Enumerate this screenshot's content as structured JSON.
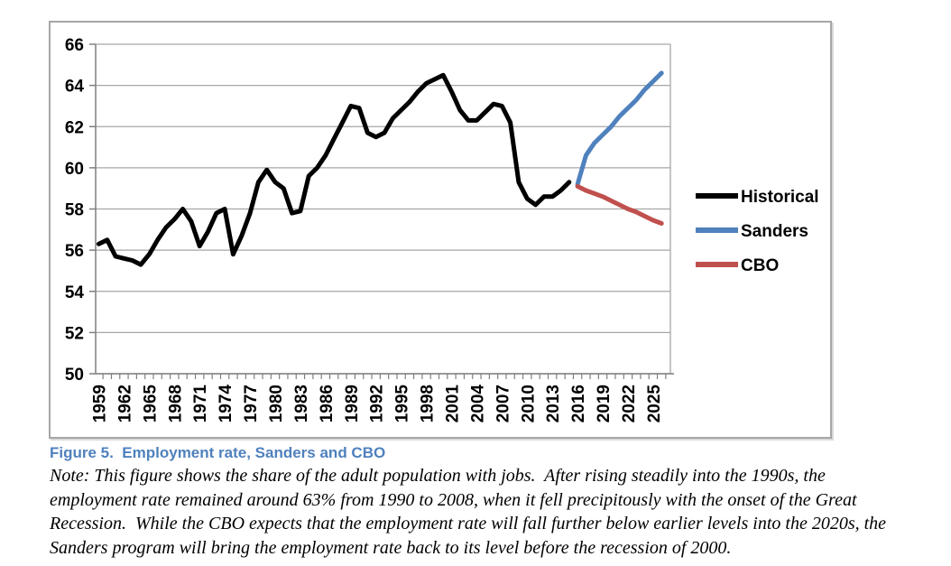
{
  "figure": {
    "caption": "Figure 5.  Employment rate, Sanders and CBO",
    "note_lines": [
      "Note: This figure shows the share of the adult population with jobs.  After rising steadily into the 1990s, the",
      "employment rate remained around 63% from 1990 to 2008, when it fell precipitously with the onset of the Great",
      "Recession.  While the CBO expects that the employment rate will fall further below earlier levels into the 2020s, the",
      "Sanders program will bring the employment rate back to its level before the recession of 2000."
    ]
  },
  "chart_data": {
    "type": "line",
    "title": "Figure 5. Employment rate, Sanders and CBO",
    "xlabel": "",
    "ylabel": "",
    "ylim": [
      50,
      66
    ],
    "y_ticks": [
      50,
      52,
      54,
      56,
      58,
      60,
      62,
      64,
      66
    ],
    "x_range": [
      1959,
      2026
    ],
    "x_label_years": [
      1959,
      1962,
      1965,
      1968,
      1971,
      1974,
      1977,
      1980,
      1983,
      1986,
      1989,
      1992,
      1995,
      1998,
      2001,
      2004,
      2007,
      2010,
      2013,
      2016,
      2019,
      2022,
      2025
    ],
    "grid": true,
    "legend_position": "right",
    "axis_color": "#7f7f7f",
    "grid_color": "#a6a6a6",
    "series": [
      {
        "name": "Historical",
        "color": "#000000",
        "start_year": 1959,
        "values": [
          56.3,
          56.5,
          55.7,
          55.6,
          55.5,
          55.3,
          55.8,
          56.5,
          57.1,
          57.5,
          58.0,
          57.4,
          56.2,
          56.9,
          57.8,
          58.0,
          55.8,
          56.7,
          57.8,
          59.3,
          59.9,
          59.3,
          59.0,
          57.8,
          57.9,
          59.6,
          60.0,
          60.6,
          61.4,
          62.2,
          63.0,
          62.9,
          61.7,
          61.5,
          61.7,
          62.4,
          62.8,
          63.2,
          63.7,
          64.1,
          64.3,
          64.5,
          63.7,
          62.8,
          62.3,
          62.3,
          62.7,
          63.1,
          63.0,
          62.2,
          59.3,
          58.5,
          58.2,
          58.6,
          58.6,
          58.9,
          59.3
        ]
      },
      {
        "name": "Sanders",
        "color": "#4f81bd",
        "start_year": 2016,
        "values": [
          59.2,
          60.6,
          61.2,
          61.6,
          62.0,
          62.5,
          62.9,
          63.3,
          63.8,
          64.2,
          64.6
        ]
      },
      {
        "name": "CBO",
        "color": "#c0504d",
        "start_year": 2016,
        "values": [
          59.1,
          58.9,
          58.75,
          58.6,
          58.4,
          58.2,
          58.0,
          57.85,
          57.65,
          57.45,
          57.3
        ]
      }
    ]
  }
}
